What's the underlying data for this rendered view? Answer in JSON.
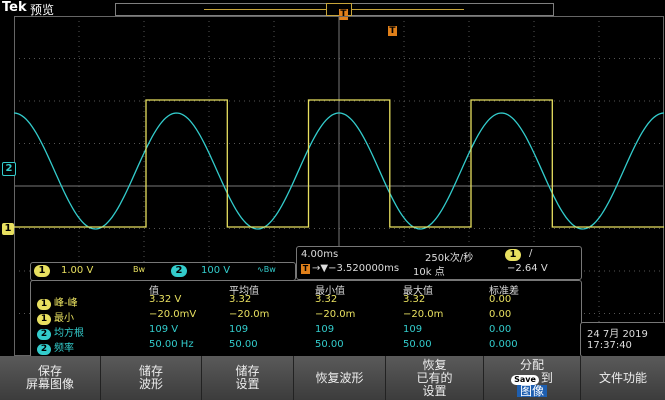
{
  "topbar": {
    "brand": "Tek",
    "mode": "预览",
    "trigger_marker": "T"
  },
  "colors": {
    "ch1": "#e8e060",
    "ch2": "#3cc",
    "trigger": "#e0801a",
    "grid": "#666",
    "menu_highlight": "#1e5fb0"
  },
  "channels": {
    "ch1": {
      "badge": "1",
      "scale": "1.00 V",
      "bw": "Bw",
      "marker": "1"
    },
    "ch2": {
      "badge": "2",
      "scale": "100 V",
      "bw": "∿Bw",
      "marker": "2"
    }
  },
  "timebase": {
    "per_div": "4.00ms",
    "sample_rate": "250k次/秒",
    "delay": "→▼−3.520000ms",
    "record_length": "10k 点",
    "trigger_channel": "1",
    "trigger_slope": "/",
    "trigger_level": "−2.64 V"
  },
  "measurements": {
    "headers": [
      "值",
      "平均值",
      "最小值",
      "最大值",
      "标准差"
    ],
    "rows": [
      {
        "ch": "1",
        "name": "峰-峰",
        "values": [
          "3.32 V",
          "3.32",
          "3.32",
          "3.32",
          "0.00"
        ]
      },
      {
        "ch": "1",
        "name": "最小",
        "values": [
          "−20.0mV",
          "−20.0m",
          "−20.0m",
          "−20.0m",
          "0.00"
        ]
      },
      {
        "ch": "2",
        "name": "均方根",
        "values": [
          "109 V",
          "109",
          "109",
          "109",
          "0.00"
        ]
      },
      {
        "ch": "2",
        "name": "频率",
        "values": [
          "50.00 Hz",
          "50.00",
          "50.00",
          "50.00",
          "0.000"
        ]
      }
    ]
  },
  "datetime": {
    "date": "24 7月 2019",
    "time": "17:37:40"
  },
  "menu": {
    "save_screen": [
      "保存",
      "屏幕图像"
    ],
    "save_waveform": [
      "储存",
      "波形"
    ],
    "save_setup": [
      "储存",
      "设置"
    ],
    "recall_waveform": "恢复波形",
    "recall_setup": [
      "恢复",
      "已有的",
      "设置"
    ],
    "assign": {
      "line1": "分配",
      "save_label": "Save",
      "to": "到",
      "target": "图像"
    },
    "file_utilities": "文件功能"
  },
  "waveform": {
    "ch1": {
      "type": "square",
      "period_ms": 20,
      "high_v": 3.3,
      "low_v": -0.02
    },
    "ch2": {
      "type": "sine",
      "frequency_hz": 50,
      "rms_v": 109
    }
  }
}
